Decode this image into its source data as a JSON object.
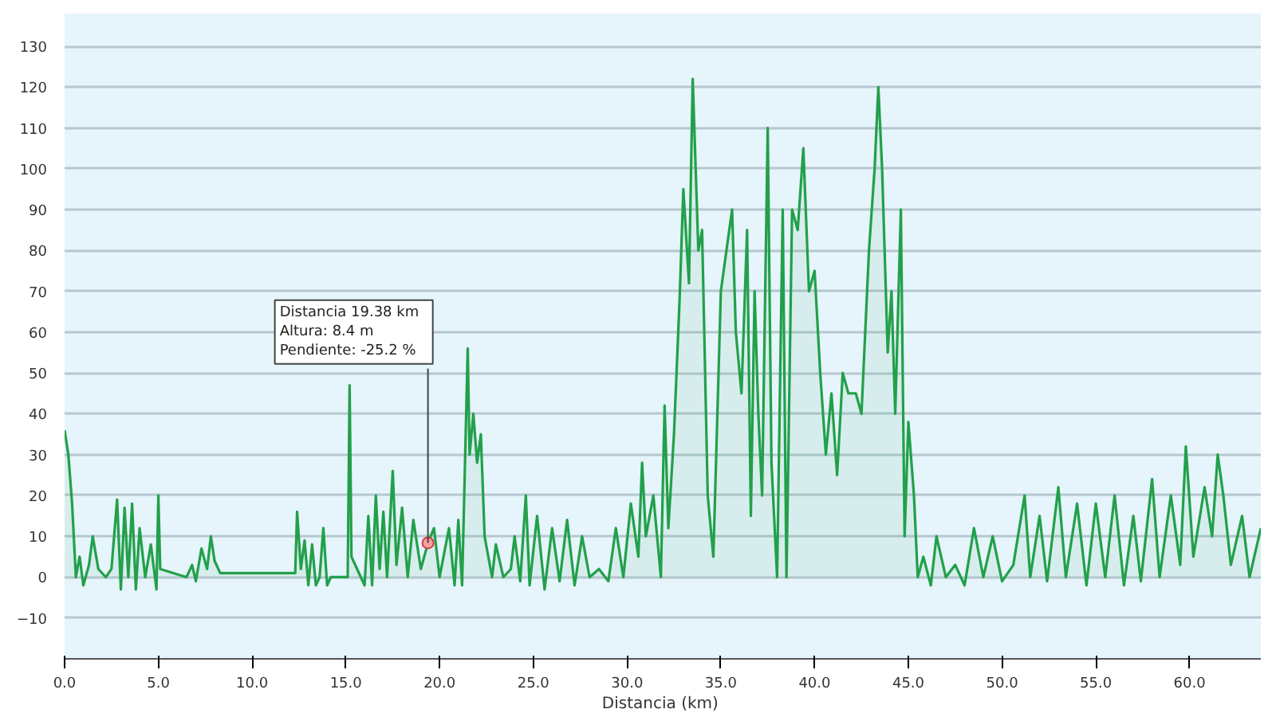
{
  "chart_data": {
    "type": "area",
    "xlabel": "Distancia  (km)",
    "x": [
      0.0,
      0.2,
      0.4,
      0.6,
      0.8,
      1.0,
      1.3,
      1.5,
      1.8,
      2.2,
      2.5,
      2.8,
      3.0,
      3.2,
      3.4,
      3.6,
      3.8,
      4.0,
      4.3,
      4.6,
      4.9,
      5.0,
      5.1,
      6.5,
      6.8,
      7.0,
      7.3,
      7.6,
      7.8,
      8.0,
      8.3,
      12.3,
      12.4,
      12.6,
      12.8,
      13.0,
      13.2,
      13.4,
      13.6,
      13.8,
      14.0,
      14.2,
      15.1,
      15.2,
      15.3,
      15.6,
      16.0,
      16.2,
      16.4,
      16.6,
      16.8,
      17.0,
      17.2,
      17.5,
      17.7,
      18.0,
      18.3,
      18.6,
      19.0,
      19.38,
      19.7,
      20.0,
      20.5,
      20.8,
      21.0,
      21.2,
      21.5,
      21.6,
      21.8,
      22.0,
      22.2,
      22.4,
      22.8,
      23.0,
      23.4,
      23.8,
      24.0,
      24.3,
      24.6,
      24.8,
      25.2,
      25.6,
      26.0,
      26.4,
      26.8,
      27.2,
      27.6,
      28.0,
      28.5,
      29.0,
      29.4,
      29.8,
      30.2,
      30.6,
      30.8,
      31.0,
      31.4,
      31.8,
      32.0,
      32.2,
      32.5,
      32.8,
      33.0,
      33.3,
      33.5,
      33.8,
      34.0,
      34.3,
      34.6,
      35.0,
      35.3,
      35.6,
      35.8,
      36.1,
      36.4,
      36.6,
      36.8,
      37.0,
      37.2,
      37.5,
      37.7,
      38.0,
      38.3,
      38.5,
      38.8,
      39.1,
      39.4,
      39.7,
      40.0,
      40.3,
      40.6,
      40.9,
      41.2,
      41.5,
      41.8,
      42.2,
      42.5,
      42.9,
      43.2,
      43.4,
      43.6,
      43.9,
      44.1,
      44.3,
      44.6,
      44.8,
      45.0,
      45.3,
      45.5,
      45.8,
      46.2,
      46.5,
      47.0,
      47.5,
      48.0,
      48.5,
      49.0,
      49.5,
      50.0,
      50.6,
      51.2,
      51.5,
      52.0,
      52.4,
      53.0,
      53.4,
      54.0,
      54.5,
      55.0,
      55.5,
      56.0,
      56.5,
      57.0,
      57.4,
      58.0,
      58.4,
      59.0,
      59.5,
      59.8,
      60.2,
      60.8,
      61.2,
      61.5,
      61.8,
      62.2,
      62.8,
      63.2,
      63.8
    ],
    "series": [
      {
        "color": "#22a04a",
        "values": [
          36,
          30,
          18,
          0,
          5,
          -2,
          3,
          10,
          2,
          0,
          2,
          19,
          -3,
          17,
          0,
          18,
          -3,
          12,
          0,
          8,
          -3,
          20,
          2,
          0,
          3,
          -1,
          7,
          2,
          10,
          4,
          1,
          1,
          16,
          2,
          9,
          -2,
          8,
          -2,
          0,
          12,
          -2,
          0,
          0,
          47,
          5,
          2,
          -2,
          15,
          -2,
          20,
          2,
          16,
          0,
          26,
          3,
          17,
          0,
          14,
          2,
          8.4,
          12,
          0,
          12,
          -2,
          14,
          -2,
          56,
          30,
          40,
          28,
          35,
          10,
          0,
          8,
          0,
          2,
          10,
          -1,
          20,
          -2,
          15,
          -3,
          12,
          -1,
          14,
          -2,
          10,
          0,
          2,
          -1,
          12,
          0,
          18,
          5,
          28,
          10,
          20,
          0,
          42,
          12,
          35,
          68,
          95,
          72,
          122,
          80,
          85,
          20,
          5,
          70,
          80,
          90,
          60,
          45,
          85,
          15,
          70,
          40,
          20,
          110,
          28,
          null,
          90,
          null,
          90,
          85,
          105,
          70,
          75,
          50,
          30,
          45,
          25,
          50,
          45,
          45,
          40,
          80,
          100,
          120,
          100,
          55,
          70,
          40,
          90,
          10,
          38,
          20,
          0,
          5,
          -2,
          10,
          0,
          3,
          -2,
          12,
          0,
          10,
          -1,
          3,
          20,
          0,
          15,
          -1,
          22,
          0,
          18,
          -2,
          18,
          0,
          20,
          -2,
          15,
          -1,
          24,
          0,
          20,
          3,
          32,
          5,
          22,
          10,
          30,
          20,
          3,
          15,
          0,
          12
        ]
      }
    ],
    "xlim": [
      0,
      63.8
    ],
    "ylim": [
      -20,
      138
    ],
    "xticks": [
      {
        "value": 0,
        "label": "0.0"
      },
      {
        "value": 5,
        "label": "5.0"
      },
      {
        "value": 10,
        "label": "10.0"
      },
      {
        "value": 15,
        "label": "15.0"
      },
      {
        "value": 20,
        "label": "20.0"
      },
      {
        "value": 25,
        "label": "25.0"
      },
      {
        "value": 30,
        "label": "30.0"
      },
      {
        "value": 35,
        "label": "35.0"
      },
      {
        "value": 40,
        "label": "40.0"
      },
      {
        "value": 45,
        "label": "45.0"
      },
      {
        "value": 50,
        "label": "50.0"
      },
      {
        "value": 55,
        "label": "55.0"
      },
      {
        "value": 60,
        "label": "60.0"
      }
    ],
    "yticks": [
      -10,
      0,
      10,
      20,
      30,
      40,
      50,
      60,
      70,
      80,
      90,
      100,
      110,
      120,
      130
    ],
    "grid": "y",
    "marker": "none",
    "annotations": [
      {
        "text": "Distancia   19.38 km\nAltura: 8.4 m\nPendiente: -25.2 %",
        "x": 19.38,
        "y": 8.4
      }
    ]
  }
}
